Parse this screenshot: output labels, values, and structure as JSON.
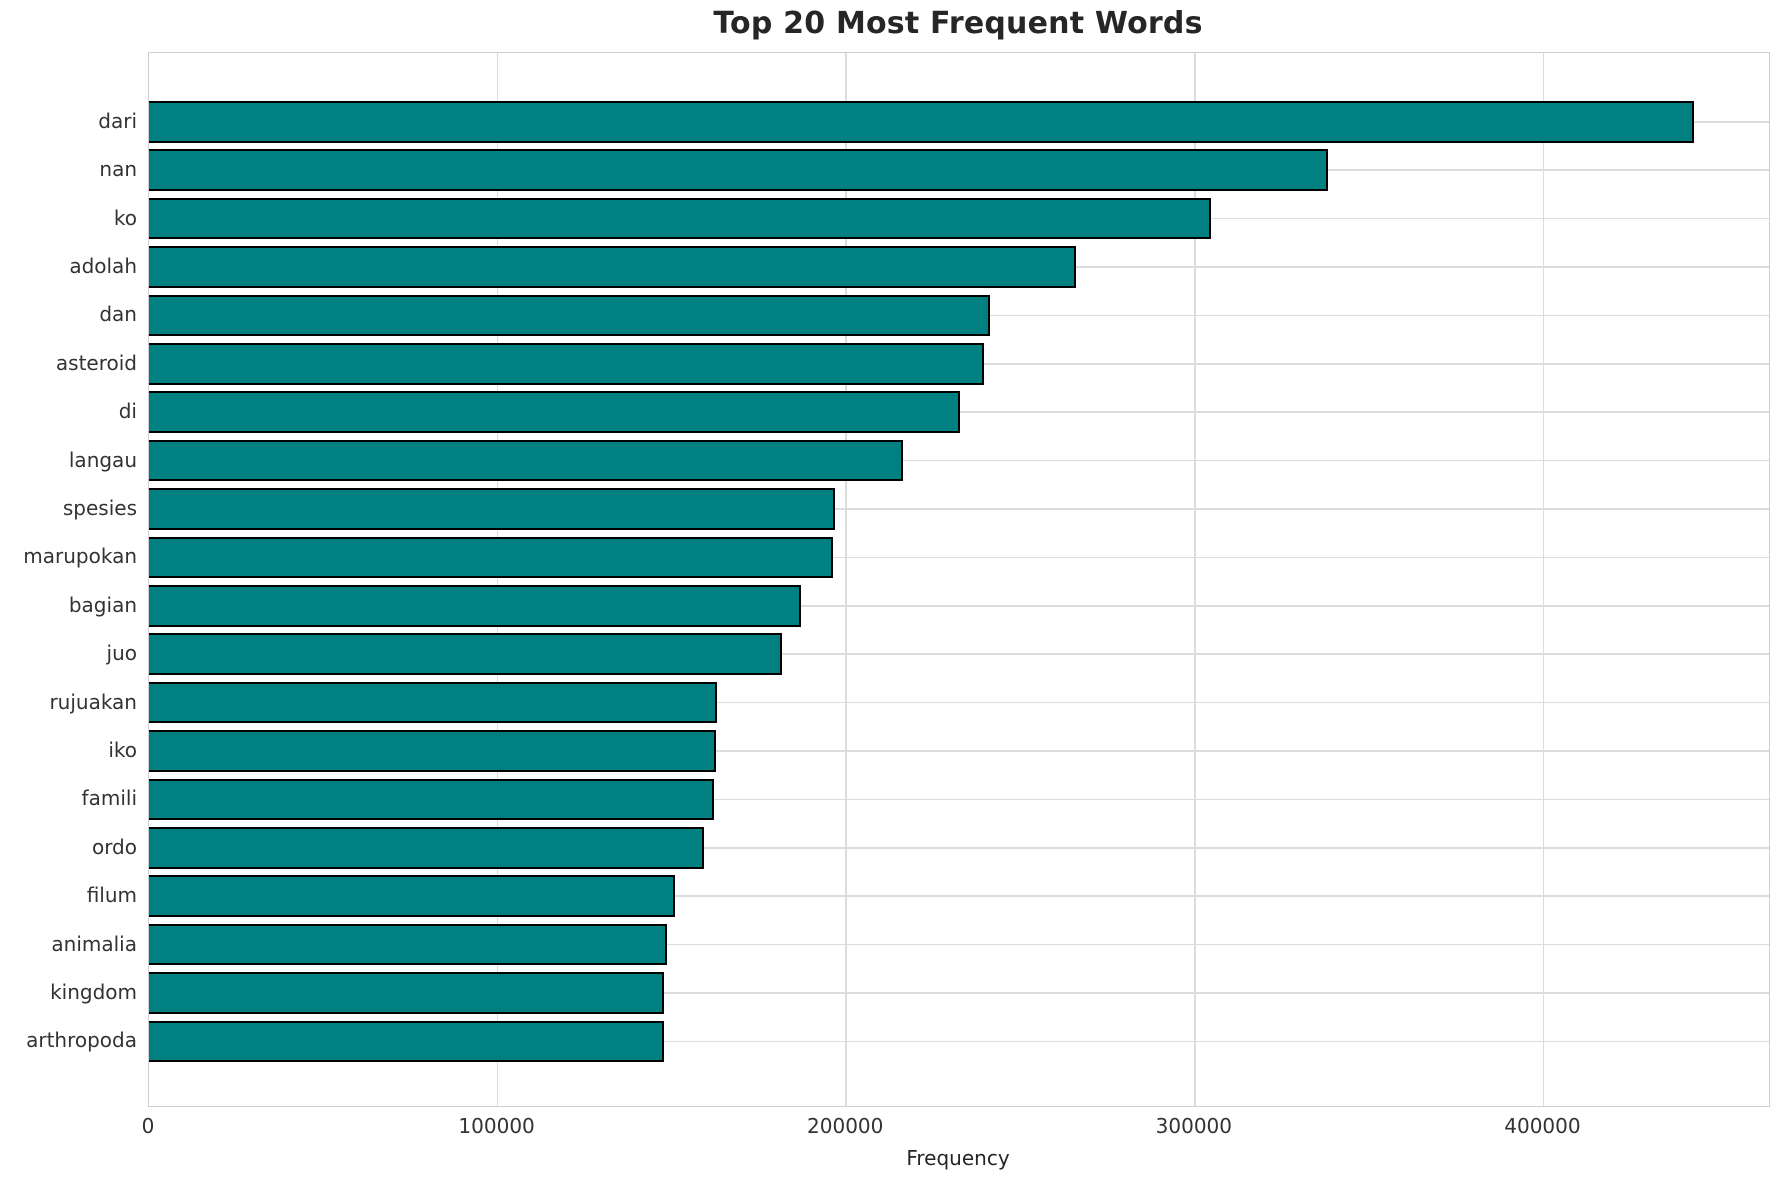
{
  "chart_data": {
    "type": "bar",
    "orientation": "horizontal",
    "title": "Top 20 Most Frequent Words",
    "xlabel": "Frequency",
    "ylabel": "",
    "categories": [
      "dari",
      "nan",
      "ko",
      "adolah",
      "dan",
      "asteroid",
      "di",
      "langau",
      "spesies",
      "marupokan",
      "bagian",
      "juo",
      "rujuakan",
      "iko",
      "famili",
      "ordo",
      "filum",
      "animalia",
      "kingdom",
      "arthropoda"
    ],
    "values": [
      443100,
      338200,
      304700,
      265900,
      241100,
      239600,
      232700,
      216400,
      196900,
      196300,
      187100,
      181500,
      163000,
      162700,
      162000,
      159200,
      151000,
      148500,
      147800,
      147700
    ],
    "xlim": [
      0,
      464700
    ],
    "xticks": [
      0,
      100000,
      200000,
      300000,
      400000
    ],
    "xtick_labels": [
      "0",
      "100000",
      "200000",
      "300000",
      "400000"
    ],
    "grid": true,
    "legend_position": "none",
    "colors": {
      "bar_fill": "#008080",
      "bar_edge": "#000000",
      "grid": "#dcdcdc",
      "spine": "#cfcfcf",
      "title_text": "#262626",
      "tick_text": "#333333"
    }
  }
}
